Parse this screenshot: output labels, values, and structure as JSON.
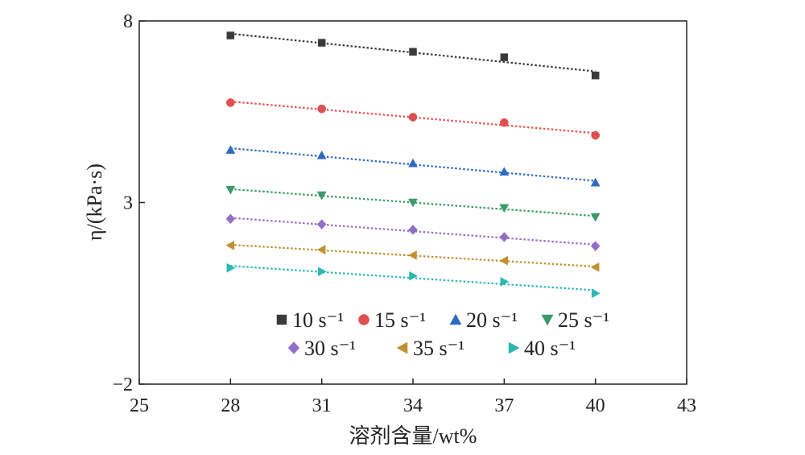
{
  "chart_data": {
    "type": "scatter",
    "xlabel": "溶剂含量/wt%",
    "ylabel": "η/(kPa·s)",
    "xlim": [
      25,
      43
    ],
    "ylim": [
      -2,
      8
    ],
    "x_ticks": [
      "25",
      "28",
      "31",
      "34",
      "37",
      "40",
      "43"
    ],
    "y_ticks": [
      "−2",
      "3",
      "8"
    ],
    "x": [
      28,
      31,
      34,
      37,
      40
    ],
    "trendlines": "dotted linear fit per series",
    "grid": false,
    "legend_position": "lower-center inside plot",
    "series": [
      {
        "name": "10 s⁻¹",
        "marker": "square",
        "color": "#3a3a3a",
        "values": [
          7.6,
          7.4,
          7.15,
          7.0,
          6.5
        ]
      },
      {
        "name": "15 s⁻¹",
        "marker": "circle",
        "color": "#e05050",
        "values": [
          5.75,
          5.58,
          5.35,
          5.2,
          4.85
        ]
      },
      {
        "name": "20 s⁻¹",
        "marker": "triangle-up",
        "color": "#2e6cc0",
        "values": [
          4.45,
          4.3,
          4.08,
          3.85,
          3.55
        ]
      },
      {
        "name": "25 s⁻¹",
        "marker": "triangle-down",
        "color": "#3a9a6a",
        "values": [
          3.35,
          3.2,
          3.0,
          2.85,
          2.6
        ]
      },
      {
        "name": "30 s⁻¹",
        "marker": "diamond",
        "color": "#9370c8",
        "values": [
          2.55,
          2.4,
          2.25,
          2.05,
          1.8
        ]
      },
      {
        "name": "35 s⁻¹",
        "marker": "triangle-left",
        "color": "#c09030",
        "values": [
          1.82,
          1.7,
          1.55,
          1.4,
          1.22
        ]
      },
      {
        "name": "40 s⁻¹",
        "marker": "triangle-right",
        "color": "#2ab8b0",
        "values": [
          1.2,
          1.1,
          0.98,
          0.82,
          0.5
        ]
      }
    ]
  }
}
